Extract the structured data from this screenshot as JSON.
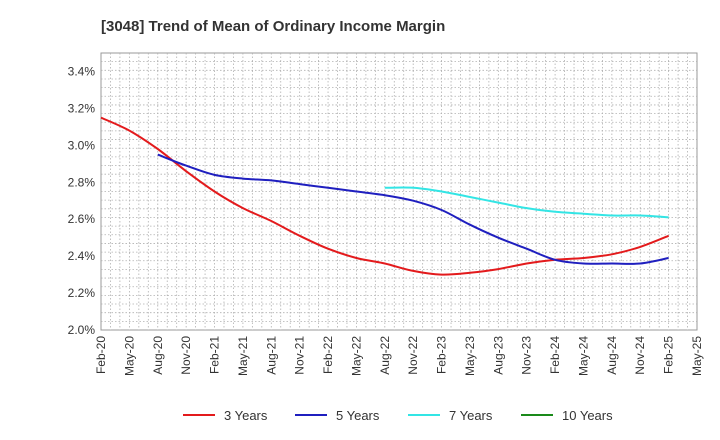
{
  "chart_data": {
    "type": "line",
    "title": "[3048]  Trend of Mean of Ordinary Income Margin",
    "xlabel": "",
    "ylabel": "",
    "ylim": [
      2.0,
      3.5
    ],
    "y_ticks": [
      "2.0%",
      "2.2%",
      "2.4%",
      "2.6%",
      "2.8%",
      "3.0%",
      "3.2%",
      "3.4%"
    ],
    "y_tick_values": [
      2.0,
      2.2,
      2.4,
      2.6,
      2.8,
      3.0,
      3.2,
      3.4
    ],
    "x_ticks": [
      "Feb-20",
      "May-20",
      "Aug-20",
      "Nov-20",
      "Feb-21",
      "May-21",
      "Aug-21",
      "Nov-21",
      "Feb-22",
      "May-22",
      "Aug-22",
      "Nov-22",
      "Feb-23",
      "May-23",
      "Aug-23",
      "Nov-23",
      "Feb-24",
      "May-24",
      "Aug-24",
      "Nov-24",
      "Feb-25",
      "May-25"
    ],
    "grid": true,
    "legend_position": "bottom",
    "series": [
      {
        "name": "3 Years",
        "color": "#e31a1c",
        "x": [
          "Feb-20",
          "May-20",
          "Aug-20",
          "Nov-20",
          "Feb-21",
          "May-21",
          "Aug-21",
          "Nov-21",
          "Feb-22",
          "May-22",
          "Aug-22",
          "Nov-22",
          "Feb-23",
          "May-23",
          "Aug-23",
          "Nov-23",
          "Feb-24",
          "May-24",
          "Aug-24",
          "Nov-24",
          "Feb-25"
        ],
        "values": [
          3.15,
          3.08,
          2.98,
          2.86,
          2.75,
          2.66,
          2.59,
          2.51,
          2.44,
          2.39,
          2.36,
          2.32,
          2.3,
          2.31,
          2.33,
          2.36,
          2.38,
          2.39,
          2.41,
          2.45,
          2.51
        ]
      },
      {
        "name": "5 Years",
        "color": "#1f1fbf",
        "x": [
          "Aug-20",
          "Nov-20",
          "Feb-21",
          "May-21",
          "Aug-21",
          "Nov-21",
          "Feb-22",
          "May-22",
          "Aug-22",
          "Nov-22",
          "Feb-23",
          "May-23",
          "Aug-23",
          "Nov-23",
          "Feb-24",
          "May-24",
          "Aug-24",
          "Nov-24",
          "Feb-25"
        ],
        "values": [
          2.95,
          2.89,
          2.84,
          2.82,
          2.81,
          2.79,
          2.77,
          2.75,
          2.73,
          2.7,
          2.65,
          2.57,
          2.5,
          2.44,
          2.38,
          2.36,
          2.36,
          2.36,
          2.39
        ]
      },
      {
        "name": "7 Years",
        "color": "#33e5e5",
        "x": [
          "Aug-22",
          "Nov-22",
          "Feb-23",
          "May-23",
          "Aug-23",
          "Nov-23",
          "Feb-24",
          "May-24",
          "Aug-24",
          "Nov-24",
          "Feb-25"
        ],
        "values": [
          2.77,
          2.77,
          2.75,
          2.72,
          2.69,
          2.66,
          2.64,
          2.63,
          2.62,
          2.62,
          2.61
        ]
      },
      {
        "name": "10 Years",
        "color": "#1a8a1a",
        "x": [],
        "values": []
      }
    ]
  }
}
